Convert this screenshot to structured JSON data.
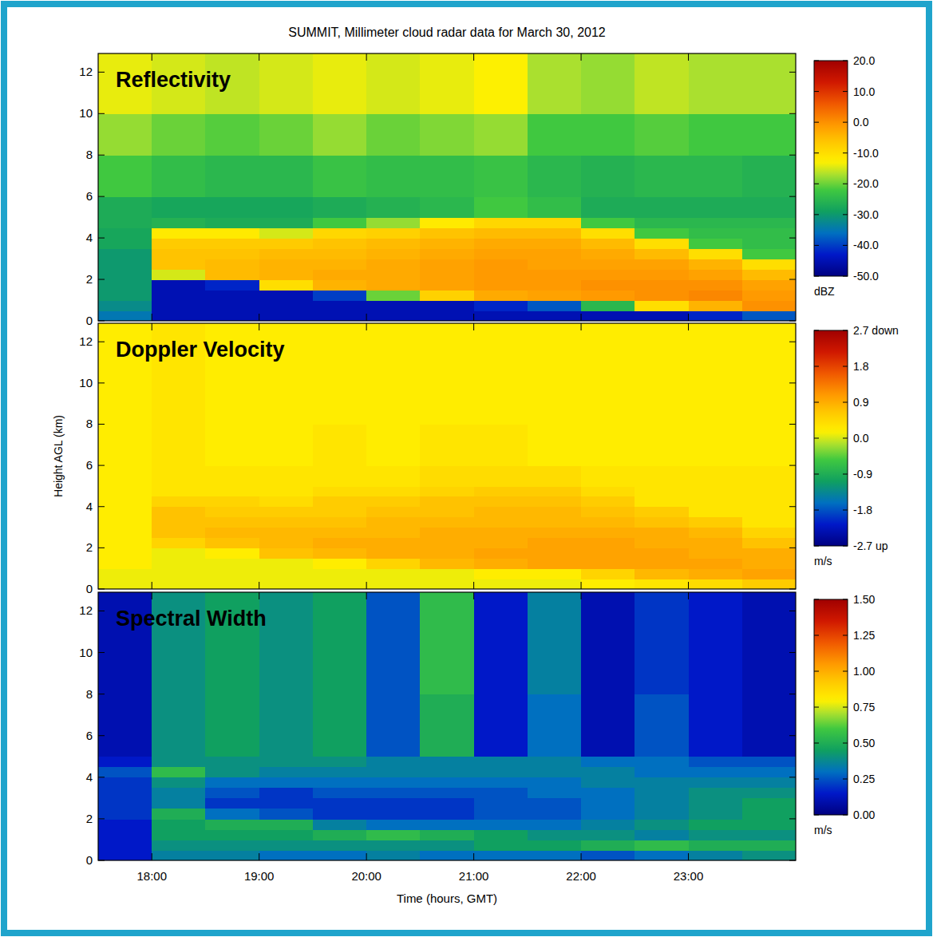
{
  "title": "SUMMIT, Millimeter cloud radar data for March 30, 2012",
  "chart_data": [
    {
      "type": "heatmap",
      "title": "Reflectivity",
      "tick_labels": "y",
      "xlim": [
        17.5,
        24.0
      ],
      "ylim": [
        0,
        12.9
      ],
      "xticks": [
        {
          "value": 18,
          "label": "18:00"
        },
        {
          "value": 19,
          "label": "19:00"
        },
        {
          "value": 20,
          "label": "20:00"
        },
        {
          "value": 21,
          "label": "21:00"
        },
        {
          "value": 22,
          "label": "22:00"
        },
        {
          "value": 23,
          "label": "23:00"
        }
      ],
      "yticks": [
        0,
        2,
        4,
        6,
        8,
        10,
        12
      ],
      "x_edges": [
        17.5,
        18.0,
        18.5,
        19.0,
        19.5,
        20.0,
        20.5,
        21.0,
        21.5,
        22.0,
        22.5,
        23.0,
        23.5,
        24.0
      ],
      "y_edges": [
        0,
        0.5,
        1,
        1.5,
        2,
        2.5,
        3,
        3.5,
        4,
        4.5,
        5,
        6,
        8,
        10,
        12.9
      ],
      "cells": [
        [
          -35,
          -45,
          -45,
          -45,
          -45,
          -45,
          -45,
          -45,
          -45,
          -45,
          -45,
          -42,
          -38
        ],
        [
          -32,
          -45,
          -45,
          -45,
          -45,
          -45,
          -45,
          -42,
          -38,
          -25,
          -10,
          -4,
          0
        ],
        [
          -30,
          -45,
          -45,
          -45,
          -40,
          -20,
          -8,
          -3,
          -2,
          -1,
          0,
          1,
          -1
        ],
        [
          -30,
          -45,
          -42,
          -10,
          -4,
          -3,
          -2,
          -1,
          -1,
          0,
          0,
          0,
          -2
        ],
        [
          -30,
          -15,
          -5,
          -4,
          -3,
          -3,
          -2,
          -1,
          -1,
          -1,
          -1,
          -2,
          -5
        ],
        [
          -30,
          -6,
          -5,
          -4,
          -4,
          -3,
          -2,
          -1,
          -2,
          -2,
          -2,
          -4,
          -10
        ],
        [
          -30,
          -6,
          -6,
          -5,
          -5,
          -4,
          -3,
          -2,
          -2,
          -3,
          -5,
          -10,
          -22
        ],
        [
          -28,
          -7,
          -7,
          -7,
          -6,
          -5,
          -4,
          -3,
          -3,
          -5,
          -10,
          -22,
          -24
        ],
        [
          -28,
          -12,
          -12,
          -15,
          -9,
          -8,
          -6,
          -5,
          -5,
          -10,
          -22,
          -24,
          -24
        ],
        [
          -27,
          -26,
          -27,
          -27,
          -22,
          -18,
          -12,
          -9,
          -9,
          -22,
          -25,
          -25,
          -25
        ],
        [
          -27,
          -28,
          -28,
          -28,
          -27,
          -26,
          -25,
          -22,
          -24,
          -27,
          -27,
          -27,
          -27
        ],
        [
          -22,
          -24,
          -25,
          -25,
          -23,
          -24,
          -24,
          -23,
          -25,
          -26,
          -25,
          -25,
          -26
        ],
        [
          -18,
          -20,
          -21,
          -20,
          -18,
          -20,
          -19,
          -18,
          -22,
          -22,
          -21,
          -22,
          -22
        ],
        [
          -14,
          -15,
          -16,
          -15,
          -14,
          -15,
          -14,
          -13,
          -17,
          -18,
          -16,
          -17,
          -17
        ]
      ],
      "colorbar": {
        "range": [
          -50,
          20
        ],
        "label": "dBZ",
        "ticks": [
          {
            "value": 20,
            "label": "20.0"
          },
          {
            "value": 10,
            "label": "10.0"
          },
          {
            "value": 0,
            "label": "0.0"
          },
          {
            "value": -10,
            "label": "-10.0"
          },
          {
            "value": -20,
            "label": "-20.0"
          },
          {
            "value": -30,
            "label": "-30.0"
          },
          {
            "value": -40,
            "label": "-40.0"
          },
          {
            "value": -50,
            "label": "-50.0"
          }
        ]
      }
    },
    {
      "type": "heatmap",
      "title": "Doppler Velocity",
      "tick_labels": "y",
      "ylabel": "Height AGL (km)",
      "xlim": [
        17.5,
        24.0
      ],
      "ylim": [
        0,
        12.9
      ],
      "xticks": [
        {
          "value": 18,
          "label": "18:00"
        },
        {
          "value": 19,
          "label": "19:00"
        },
        {
          "value": 20,
          "label": "20:00"
        },
        {
          "value": 21,
          "label": "21:00"
        },
        {
          "value": 22,
          "label": "22:00"
        },
        {
          "value": 23,
          "label": "23:00"
        }
      ],
      "yticks": [
        0,
        2,
        4,
        6,
        8,
        10,
        12
      ],
      "x_edges": [
        17.5,
        18.0,
        18.5,
        19.0,
        19.5,
        20.0,
        20.5,
        21.0,
        21.5,
        22.0,
        22.5,
        23.0,
        23.5,
        24.0
      ],
      "y_edges": [
        0,
        0.5,
        1,
        1.5,
        2,
        2.5,
        3,
        3.5,
        4,
        4.5,
        5,
        6,
        8,
        10,
        12.9
      ],
      "cells": [
        [
          0.1,
          0.1,
          0.1,
          0.1,
          0.1,
          0.1,
          0.1,
          0.1,
          0.1,
          0.2,
          0.3,
          0.4,
          0.6
        ],
        [
          0.1,
          0.1,
          0.1,
          0.1,
          0.1,
          0.1,
          0.1,
          0.2,
          0.2,
          0.5,
          0.8,
          0.9,
          1.0
        ],
        [
          0.2,
          0.1,
          0.1,
          0.1,
          0.2,
          0.5,
          0.8,
          0.9,
          1.0,
          1.0,
          1.0,
          1.0,
          0.9
        ],
        [
          0.2,
          0.1,
          0.2,
          0.7,
          0.8,
          0.9,
          0.9,
          1.0,
          1.0,
          1.0,
          1.0,
          0.9,
          0.9
        ],
        [
          0.2,
          0.5,
          0.7,
          0.8,
          0.9,
          0.9,
          0.9,
          0.9,
          1.0,
          1.0,
          0.9,
          0.9,
          0.7
        ],
        [
          0.2,
          0.7,
          0.8,
          0.8,
          0.8,
          0.8,
          0.9,
          0.9,
          0.9,
          0.9,
          0.9,
          0.8,
          0.5
        ],
        [
          0.2,
          0.7,
          0.7,
          0.7,
          0.7,
          0.8,
          0.8,
          0.8,
          0.8,
          0.8,
          0.7,
          0.6,
          0.3
        ],
        [
          0.2,
          0.7,
          0.6,
          0.6,
          0.6,
          0.7,
          0.7,
          0.8,
          0.8,
          0.7,
          0.6,
          0.3,
          0.3
        ],
        [
          0.2,
          0.5,
          0.5,
          0.4,
          0.6,
          0.6,
          0.7,
          0.7,
          0.7,
          0.6,
          0.3,
          0.3,
          0.3
        ],
        [
          0.2,
          0.3,
          0.3,
          0.3,
          0.4,
          0.4,
          0.5,
          0.6,
          0.6,
          0.4,
          0.3,
          0.3,
          0.3
        ],
        [
          0.2,
          0.3,
          0.3,
          0.3,
          0.3,
          0.3,
          0.4,
          0.4,
          0.4,
          0.3,
          0.3,
          0.3,
          0.3
        ],
        [
          0.2,
          0.3,
          0.2,
          0.2,
          0.3,
          0.2,
          0.3,
          0.3,
          0.2,
          0.2,
          0.2,
          0.2,
          0.2
        ],
        [
          0.2,
          0.3,
          0.2,
          0.2,
          0.2,
          0.2,
          0.2,
          0.2,
          0.2,
          0.2,
          0.2,
          0.2,
          0.2
        ],
        [
          0.2,
          0.3,
          0.2,
          0.2,
          0.2,
          0.2,
          0.2,
          0.2,
          0.2,
          0.2,
          0.2,
          0.2,
          0.2
        ]
      ],
      "colorbar": {
        "range": [
          -2.7,
          2.7
        ],
        "label": "m/s",
        "ticks": [
          {
            "value": 2.7,
            "label": "2.7 down"
          },
          1.8,
          0.9,
          {
            "value": 0,
            "label": "0.0"
          },
          -0.9,
          -1.8,
          {
            "value": -2.7,
            "label": "-2.7 up"
          }
        ]
      }
    },
    {
      "type": "heatmap",
      "title": "Spectral Width",
      "xlabel": "Time (hours, GMT)",
      "xlim": [
        17.5,
        24.0
      ],
      "ylim": [
        0,
        12.9
      ],
      "xticks": [
        {
          "value": 18,
          "label": "18:00"
        },
        {
          "value": 19,
          "label": "19:00"
        },
        {
          "value": 20,
          "label": "20:00"
        },
        {
          "value": 21,
          "label": "21:00"
        },
        {
          "value": 22,
          "label": "22:00"
        },
        {
          "value": 23,
          "label": "23:00"
        }
      ],
      "yticks": [
        0,
        2,
        4,
        6,
        8,
        10,
        12
      ],
      "x_edges": [
        17.5,
        18.0,
        18.5,
        19.0,
        19.5,
        20.0,
        20.5,
        21.0,
        21.5,
        22.0,
        22.5,
        23.0,
        23.5,
        24.0
      ],
      "y_edges": [
        0,
        0.5,
        1,
        1.5,
        2,
        2.5,
        3,
        3.5,
        4,
        4.5,
        5,
        6,
        8,
        10,
        12.9
      ],
      "cells": [
        [
          0.15,
          0.35,
          0.35,
          0.3,
          0.3,
          0.35,
          0.3,
          0.3,
          0.3,
          0.25,
          0.3,
          0.35,
          0.4
        ],
        [
          0.15,
          0.4,
          0.4,
          0.4,
          0.4,
          0.4,
          0.4,
          0.45,
          0.45,
          0.5,
          0.55,
          0.5,
          0.5
        ],
        [
          0.15,
          0.45,
          0.45,
          0.45,
          0.5,
          0.55,
          0.5,
          0.45,
          0.4,
          0.4,
          0.35,
          0.4,
          0.4
        ],
        [
          0.15,
          0.45,
          0.5,
          0.5,
          0.35,
          0.3,
          0.3,
          0.3,
          0.3,
          0.35,
          0.4,
          0.45,
          0.45
        ],
        [
          0.2,
          0.5,
          0.3,
          0.25,
          0.2,
          0.2,
          0.2,
          0.25,
          0.25,
          0.3,
          0.35,
          0.4,
          0.45
        ],
        [
          0.2,
          0.35,
          0.2,
          0.2,
          0.2,
          0.2,
          0.2,
          0.25,
          0.25,
          0.3,
          0.35,
          0.4,
          0.45
        ],
        [
          0.2,
          0.35,
          0.25,
          0.2,
          0.25,
          0.25,
          0.25,
          0.25,
          0.3,
          0.3,
          0.35,
          0.4,
          0.4
        ],
        [
          0.2,
          0.4,
          0.3,
          0.3,
          0.3,
          0.3,
          0.3,
          0.3,
          0.3,
          0.35,
          0.35,
          0.35,
          0.35
        ],
        [
          0.25,
          0.55,
          0.4,
          0.35,
          0.35,
          0.35,
          0.35,
          0.35,
          0.35,
          0.35,
          0.3,
          0.3,
          0.3
        ],
        [
          0.15,
          0.4,
          0.4,
          0.4,
          0.4,
          0.35,
          0.35,
          0.35,
          0.35,
          0.3,
          0.3,
          0.25,
          0.25
        ],
        [
          0.1,
          0.4,
          0.45,
          0.4,
          0.45,
          0.25,
          0.5,
          0.15,
          0.3,
          0.1,
          0.25,
          0.15,
          0.1
        ],
        [
          0.1,
          0.4,
          0.45,
          0.4,
          0.45,
          0.25,
          0.5,
          0.15,
          0.3,
          0.1,
          0.25,
          0.15,
          0.1
        ],
        [
          0.1,
          0.4,
          0.45,
          0.4,
          0.45,
          0.25,
          0.55,
          0.15,
          0.35,
          0.1,
          0.2,
          0.15,
          0.1
        ],
        [
          0.1,
          0.4,
          0.45,
          0.4,
          0.45,
          0.25,
          0.55,
          0.15,
          0.35,
          0.1,
          0.2,
          0.15,
          0.1
        ]
      ],
      "colorbar": {
        "range": [
          0,
          1.5
        ],
        "label": "m/s",
        "ticks": [
          {
            "value": 1.5,
            "label": "1.50"
          },
          {
            "value": 1.25,
            "label": "1.25"
          },
          {
            "value": 1.0,
            "label": "1.00"
          },
          {
            "value": 0.75,
            "label": "0.75"
          },
          {
            "value": 0.5,
            "label": "0.50"
          },
          {
            "value": 0.25,
            "label": "0.25"
          },
          {
            "value": 0,
            "label": "0.00"
          }
        ]
      }
    }
  ]
}
